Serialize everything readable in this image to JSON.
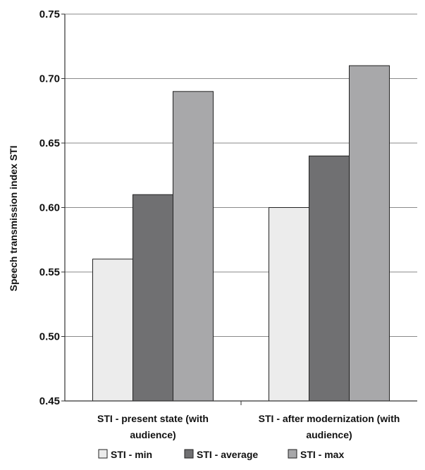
{
  "chart_data": {
    "type": "bar",
    "ylabel": "Speech transmission index STI",
    "xlabel": "",
    "ylim": [
      0.45,
      0.75
    ],
    "yticks": [
      "0.45",
      "0.50",
      "0.55",
      "0.60",
      "0.65",
      "0.70",
      "0.75"
    ],
    "grid": true,
    "legend_position": "bottom",
    "categories": [
      [
        "STI - present state (with",
        "audience)"
      ],
      [
        "STI - after modernization (with",
        "audience)"
      ]
    ],
    "series": [
      {
        "name": "STI - min",
        "color": "#ececec",
        "values": [
          0.56,
          0.6
        ]
      },
      {
        "name": "STI - average",
        "color": "#707072",
        "values": [
          0.61,
          0.64
        ]
      },
      {
        "name": "STI - max",
        "color": "#a8a8aa",
        "values": [
          0.69,
          0.71
        ]
      }
    ]
  }
}
